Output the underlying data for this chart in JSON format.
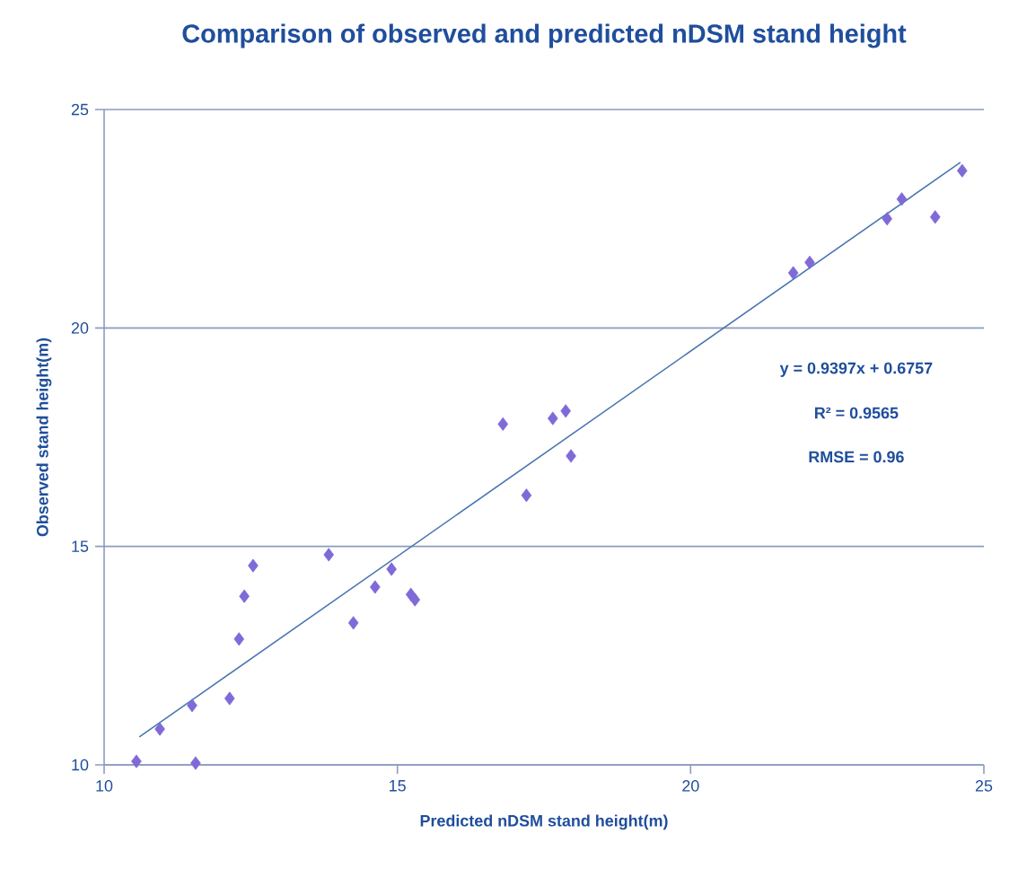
{
  "chart_data": {
    "type": "scatter",
    "title": "Comparison of observed and predicted nDSM stand height",
    "xlabel": "Predicted nDSM  stand height(m)",
    "ylabel": "Observed stand  height(m)",
    "annotations": [
      "y = 0.9397x + 0.6757",
      "R² = 0.9565",
      "RMSE = 0.96"
    ],
    "series": [
      {
        "color": "#7f6ad8",
        "marker": "diamond",
        "x": [
          10.55,
          10.95,
          11.5,
          11.56,
          12.14,
          12.3,
          12.39,
          12.54,
          13.83,
          14.25,
          14.62,
          14.9,
          15.23,
          15.3,
          16.8,
          17.2,
          17.65,
          17.87,
          17.96,
          21.75,
          22.03,
          23.35,
          23.6,
          24.17,
          24.63
        ],
        "values": [
          10.08,
          10.82,
          11.36,
          10.04,
          11.52,
          12.88,
          13.86,
          14.56,
          14.81,
          13.25,
          14.07,
          14.48,
          13.9,
          13.78,
          17.8,
          16.17,
          17.93,
          18.1,
          17.07,
          21.26,
          21.5,
          22.5,
          22.95,
          22.54,
          23.6
        ]
      },
      {
        "type": "line",
        "color": "#4a76b0",
        "line_style": "solid",
        "marker": "none",
        "x": [
          10.6,
          24.6
        ],
        "values": [
          10.64,
          23.79
        ]
      }
    ],
    "xlim": [
      10,
      25
    ],
    "ylim": [
      10,
      25
    ],
    "xticks": [
      10,
      15,
      20,
      25
    ],
    "yticks": [
      10,
      15,
      20,
      25
    ],
    "grid": "y",
    "legend": false
  }
}
